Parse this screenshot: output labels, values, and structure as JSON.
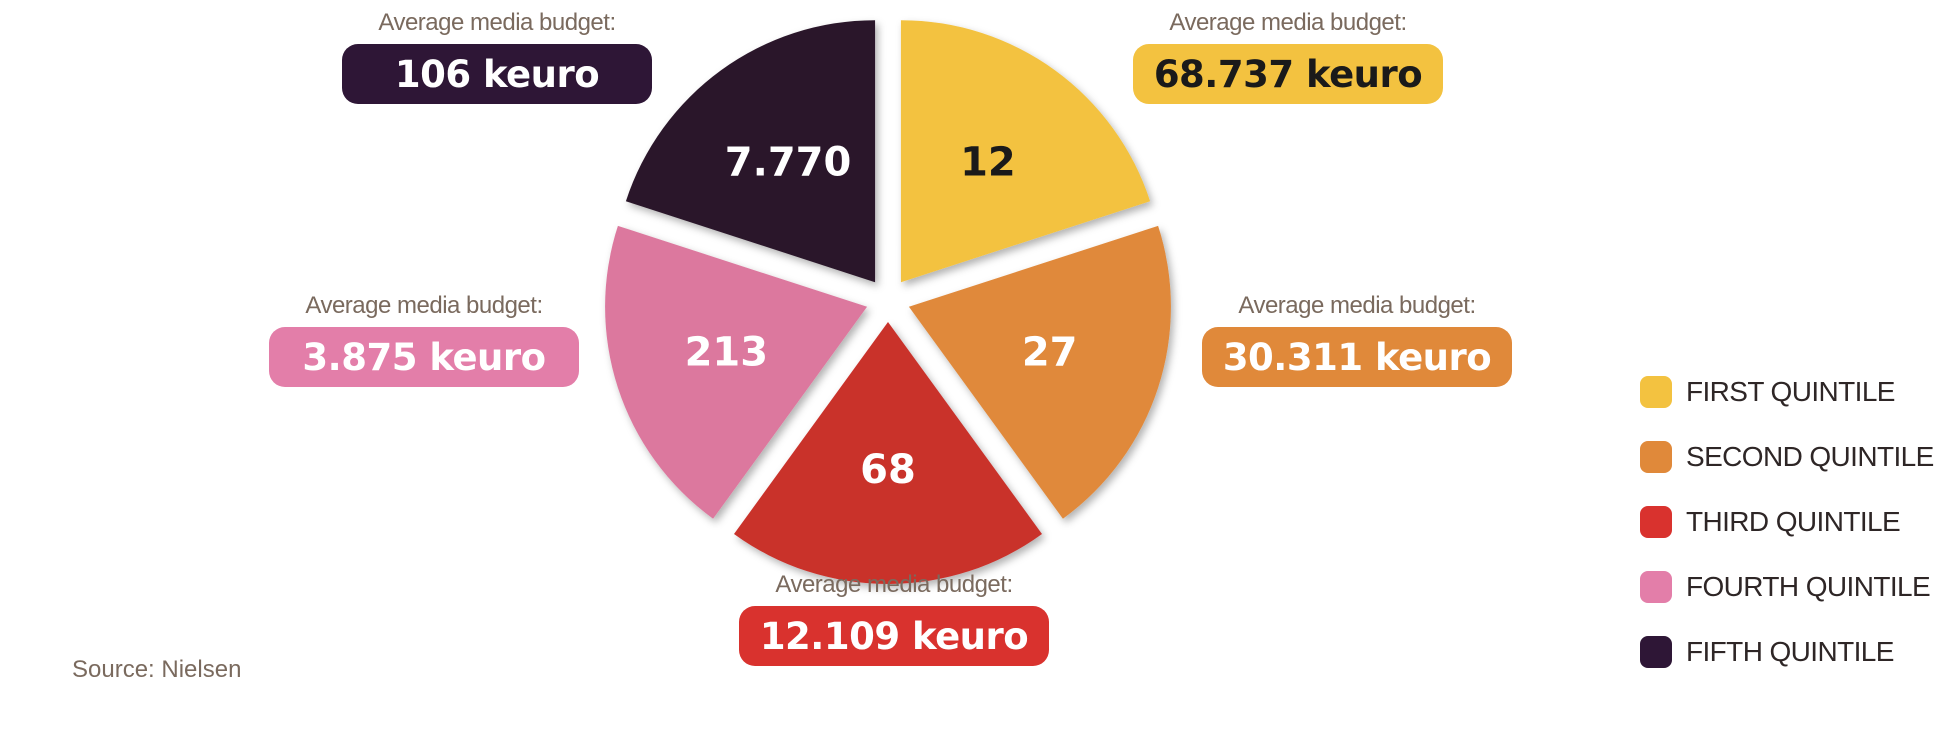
{
  "chart_data": {
    "type": "pie",
    "categories": [
      "FIRST QUINTILE",
      "SECOND QUINTILE",
      "THIRD QUINTILE",
      "FOURTH QUINTILE",
      "FIFTH QUINTILE"
    ],
    "values": [
      12,
      27,
      68,
      213,
      7770
    ],
    "value_labels": [
      "12",
      "27",
      "68",
      "213",
      "7.770"
    ],
    "colors": [
      "#F3C240",
      "#E0893A",
      "#C9302C",
      "#DC789E",
      "#2A1729"
    ],
    "label_colors": [
      "#1a1a1a",
      "#ffffff",
      "#ffffff",
      "#ffffff",
      "#ffffff"
    ],
    "exploded": true,
    "legend_position": "right"
  },
  "budgets": {
    "first": {
      "caption": "Average media budget:",
      "value": "68.737 keuro",
      "color": "#F3C240",
      "text_color": "#1a1a1a"
    },
    "second": {
      "caption": "Average media budget:",
      "value": "30.311 keuro",
      "color": "#E0893A",
      "text_color": "#ffffff"
    },
    "third": {
      "caption": "Average media budget:",
      "value": "12.109 keuro",
      "color": "#D9322E",
      "text_color": "#ffffff"
    },
    "fourth": {
      "caption": "Average media budget:",
      "value": "3.875 keuro",
      "color": "#E37EA9",
      "text_color": "#ffffff"
    },
    "fifth": {
      "caption": "Average media budget:",
      "value": "106 keuro",
      "color": "#2E1636",
      "text_color": "#ffffff"
    }
  },
  "legend": {
    "items": [
      {
        "label": "FIRST QUINTILE",
        "color": "#F3C240"
      },
      {
        "label": "SECOND QUINTILE",
        "color": "#E0893A"
      },
      {
        "label": "THIRD QUINTILE",
        "color": "#D9322E"
      },
      {
        "label": "FOURTH QUINTILE",
        "color": "#E37EA9"
      },
      {
        "label": "FIFTH QUINTILE",
        "color": "#2E1636"
      }
    ]
  },
  "source": "Source: Nielsen"
}
